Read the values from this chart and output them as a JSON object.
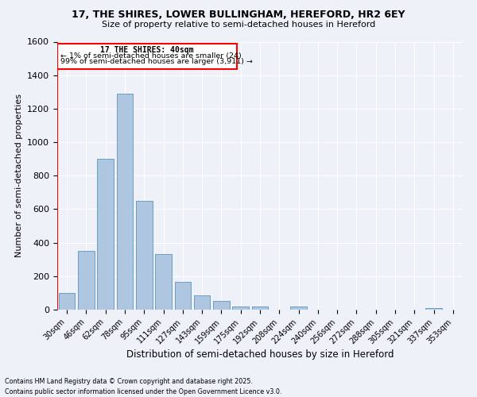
{
  "title1": "17, THE SHIRES, LOWER BULLINGHAM, HEREFORD, HR2 6EY",
  "title2": "Size of property relative to semi-detached houses in Hereford",
  "xlabel": "Distribution of semi-detached houses by size in Hereford",
  "ylabel": "Number of semi-detached properties",
  "footnote": "Contains HM Land Registry data © Crown copyright and database right 2025.\nContains public sector information licensed under the Open Government Licence v3.0.",
  "bar_color": "#aec6e0",
  "bar_edge_color": "#6a9fc0",
  "categories": [
    "30sqm",
    "46sqm",
    "62sqm",
    "78sqm",
    "95sqm",
    "111sqm",
    "127sqm",
    "143sqm",
    "159sqm",
    "175sqm",
    "192sqm",
    "208sqm",
    "224sqm",
    "240sqm",
    "256sqm",
    "272sqm",
    "288sqm",
    "305sqm",
    "321sqm",
    "337sqm",
    "353sqm"
  ],
  "values": [
    100,
    350,
    900,
    1290,
    650,
    330,
    165,
    85,
    50,
    20,
    20,
    0,
    20,
    0,
    0,
    0,
    0,
    0,
    0,
    10,
    0
  ],
  "ylim": [
    0,
    1600
  ],
  "yticks": [
    0,
    200,
    400,
    600,
    800,
    1000,
    1200,
    1400,
    1600
  ],
  "property_label": "17 THE SHIRES: 40sqm",
  "annotation_line1": "← 1% of semi-detached houses are smaller (24)",
  "annotation_line2": "99% of semi-detached houses are larger (3,911) →",
  "background_color": "#eef2f8"
}
